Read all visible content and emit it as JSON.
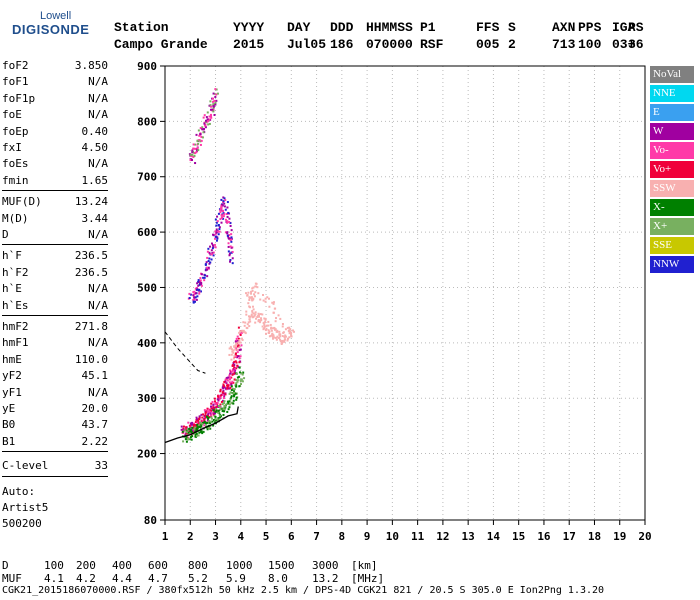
{
  "logo": {
    "top": "Lowell",
    "main": "DIGISONDE"
  },
  "header": {
    "row1": [
      "Station",
      "YYYY",
      "DAY",
      "DDD",
      "HHMMSS",
      "P1",
      "FFS",
      "S",
      "AXN",
      "PPS",
      "IGA",
      "PS"
    ],
    "row2": [
      "Campo Grande",
      "2015",
      "Jul05",
      "186",
      "070000",
      "RSF",
      "005",
      "2",
      "713",
      "100",
      "03+",
      "36"
    ]
  },
  "params_group1": [
    {
      "label": "foF2",
      "value": "3.850"
    },
    {
      "label": "foF1",
      "value": "N/A"
    },
    {
      "label": "foF1p",
      "value": "N/A"
    },
    {
      "label": "foE",
      "value": "N/A"
    },
    {
      "label": "foEp",
      "value": "0.40"
    },
    {
      "label": "fxI",
      "value": "4.50"
    },
    {
      "label": "foEs",
      "value": "N/A"
    },
    {
      "label": "fmin",
      "value": "1.65"
    }
  ],
  "params_group2": [
    {
      "label": "MUF(D)",
      "value": "13.24"
    },
    {
      "label": "M(D)",
      "value": "3.44"
    },
    {
      "label": "D",
      "value": "N/A"
    }
  ],
  "params_group3": [
    {
      "label": "h`F",
      "value": "236.5"
    },
    {
      "label": "h`F2",
      "value": "236.5"
    },
    {
      "label": "h`E",
      "value": "N/A"
    },
    {
      "label": "h`Es",
      "value": "N/A"
    }
  ],
  "params_group4": [
    {
      "label": "hmF2",
      "value": "271.8"
    },
    {
      "label": "hmF1",
      "value": "N/A"
    },
    {
      "label": "hmE",
      "value": "110.0"
    },
    {
      "label": "yF2",
      "value": "45.1"
    },
    {
      "label": "yF1",
      "value": "N/A"
    },
    {
      "label": "yE",
      "value": "20.0"
    },
    {
      "label": "B0",
      "value": "43.7"
    },
    {
      "label": "B1",
      "value": "2.22"
    }
  ],
  "clevel": {
    "label": "C-level",
    "value": "33"
  },
  "autoscale": {
    "line1": "Auto:",
    "line2": "Artist5",
    "line3": "500200"
  },
  "legend": [
    {
      "label": "NoVal",
      "color": "#808080"
    },
    {
      "label": "NNE",
      "color": "#00d8f0"
    },
    {
      "label": "E",
      "color": "#3aa0f0"
    },
    {
      "label": "W",
      "color": "#a000a0"
    },
    {
      "label": "Vo-",
      "color": "#ff3aa8"
    },
    {
      "label": "Vo+",
      "color": "#f0003a"
    },
    {
      "label": "SSW",
      "color": "#f8b0b0"
    },
    {
      "label": "X-",
      "color": "#008000"
    },
    {
      "label": "X+",
      "color": "#78b060"
    },
    {
      "label": "SSE",
      "color": "#c8c800"
    },
    {
      "label": "NNW",
      "color": "#2020d0"
    }
  ],
  "mufline": {
    "row1_label": "D",
    "distances": [
      "100",
      "200",
      "400",
      "600",
      "800",
      "1000",
      "1500",
      "3000"
    ],
    "distance_unit": "[km]",
    "row2_label": "MUF",
    "mufs": [
      "4.1",
      "4.2",
      "4.4",
      "4.7",
      "5.2",
      "5.9",
      "8.0",
      "13.2"
    ],
    "muf_unit": "[MHz]"
  },
  "footer": "CGK21_2015186070000.RSF / 380fx512h 50 kHz 2.5 km / DPS-4D CGK21 821 / 20.5 S 305.0 E Ion2Png 1.3.20",
  "chart_data": {
    "type": "scatter",
    "title": "",
    "xlabel": "",
    "ylabel": "",
    "xlim": [
      1,
      20
    ],
    "ylim": [
      80,
      900
    ],
    "x_ticks": [
      1,
      2,
      3,
      4,
      5,
      6,
      7,
      8,
      9,
      10,
      11,
      12,
      13,
      14,
      15,
      16,
      17,
      18,
      19,
      20
    ],
    "y_ticks": [
      80,
      200,
      300,
      400,
      500,
      600,
      700,
      800,
      900
    ],
    "y_tick_labels": [
      "80",
      "200",
      "300",
      "400",
      "500",
      "600",
      "700",
      "800",
      "900"
    ],
    "trace_clusters": [
      {
        "name": "O-trace main",
        "color_mix": [
          "#f0003a",
          "#ff3aa8",
          "#a000a0"
        ],
        "points": [
          [
            1.7,
            240
          ],
          [
            1.9,
            245
          ],
          [
            2.1,
            250
          ],
          [
            2.3,
            258
          ],
          [
            2.5,
            265
          ],
          [
            2.7,
            275
          ],
          [
            2.9,
            285
          ],
          [
            3.1,
            300
          ],
          [
            3.3,
            315
          ],
          [
            3.5,
            330
          ],
          [
            3.7,
            350
          ],
          [
            3.85,
            380
          ],
          [
            3.9,
            420
          ]
        ]
      },
      {
        "name": "X-trace",
        "color_mix": [
          "#008000",
          "#78b060"
        ],
        "points": [
          [
            1.7,
            232
          ],
          [
            2.0,
            238
          ],
          [
            2.3,
            246
          ],
          [
            2.6,
            255
          ],
          [
            2.9,
            265
          ],
          [
            3.2,
            278
          ],
          [
            3.5,
            295
          ],
          [
            3.8,
            320
          ],
          [
            4.0,
            350
          ]
        ]
      },
      {
        "name": "upper spread",
        "color_mix": [
          "#a000a0",
          "#ff3aa8",
          "#2020d0"
        ],
        "points": [
          [
            2.0,
            480
          ],
          [
            2.3,
            500
          ],
          [
            2.6,
            540
          ],
          [
            2.9,
            580
          ],
          [
            3.1,
            620
          ],
          [
            3.3,
            660
          ],
          [
            3.5,
            600
          ],
          [
            3.6,
            550
          ]
        ]
      },
      {
        "name": "oblique echo",
        "color_mix": [
          "#f8b0b0"
        ],
        "points": [
          [
            3.6,
            380
          ],
          [
            4.0,
            420
          ],
          [
            4.4,
            460
          ],
          [
            4.8,
            440
          ],
          [
            5.2,
            420
          ],
          [
            5.6,
            410
          ],
          [
            6.0,
            420
          ],
          [
            4.6,
            500
          ],
          [
            4.2,
            480
          ]
        ]
      },
      {
        "name": "high spike",
        "color_mix": [
          "#ff3aa8",
          "#a000a0",
          "#78b060"
        ],
        "points": [
          [
            2.0,
            730
          ],
          [
            2.2,
            760
          ],
          [
            2.5,
            790
          ],
          [
            2.8,
            820
          ],
          [
            3.0,
            860
          ]
        ]
      }
    ],
    "profile_curve": {
      "color": "#000000",
      "points": [
        [
          1.0,
          220
        ],
        [
          1.5,
          228
        ],
        [
          2.0,
          234
        ],
        [
          2.5,
          245
        ],
        [
          3.0,
          255
        ],
        [
          3.5,
          268
        ],
        [
          3.85,
          272
        ],
        [
          3.9,
          285
        ]
      ]
    },
    "dashed_profile": {
      "color": "#000000",
      "points": [
        [
          1.0,
          420
        ],
        [
          1.5,
          390
        ],
        [
          2.0,
          365
        ],
        [
          2.3,
          350
        ],
        [
          2.6,
          345
        ]
      ]
    },
    "grid": "dotted",
    "legend_placement": "right"
  }
}
